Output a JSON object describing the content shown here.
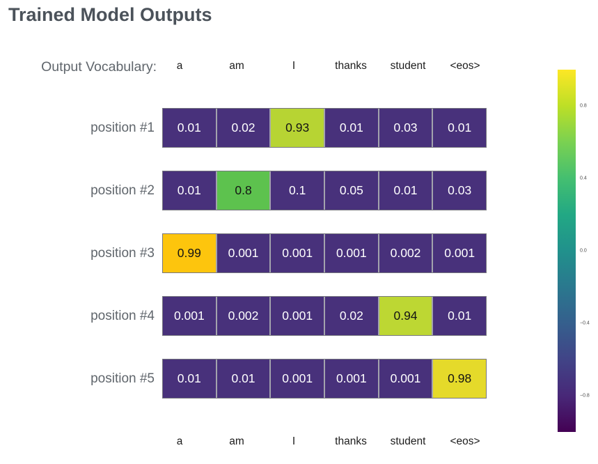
{
  "title": "Trained Model Outputs",
  "vocab_label": "Output Vocabulary:",
  "vocabulary": [
    "a",
    "am",
    "I",
    "thanks",
    "student",
    "<eos>"
  ],
  "rows": [
    {
      "label": "position #1",
      "values": [
        "0.01",
        "0.02",
        "0.93",
        "0.01",
        "0.03",
        "0.01"
      ],
      "highlight": {
        "index": 2,
        "bg": "#b7d433"
      }
    },
    {
      "label": "position #2",
      "values": [
        "0.01",
        "0.8",
        "0.1",
        "0.05",
        "0.01",
        "0.03"
      ],
      "highlight": {
        "index": 1,
        "bg": "#5dc24e"
      }
    },
    {
      "label": "position #3",
      "values": [
        "0.99",
        "0.001",
        "0.001",
        "0.001",
        "0.002",
        "0.001"
      ],
      "highlight": {
        "index": 0,
        "bg": "#fdc50d"
      }
    },
    {
      "label": "position #4",
      "values": [
        "0.001",
        "0.002",
        "0.001",
        "0.02",
        "0.94",
        "0.01"
      ],
      "highlight": {
        "index": 4,
        "bg": "#bdd733"
      }
    },
    {
      "label": "position #5",
      "values": [
        "0.01",
        "0.01",
        "0.001",
        "0.001",
        "0.001",
        "0.98"
      ],
      "highlight": {
        "index": 5,
        "bg": "#e5da2a"
      }
    }
  ],
  "colors": {
    "cell_default_bg": "#48317b",
    "cell_text_light": "#ffffff",
    "cell_text_dark": "#141414",
    "title_color": "#4b525a",
    "label_color": "#60666c",
    "colormap": "viridis"
  },
  "colorbar": {
    "ticks": [
      {
        "label": "0.8",
        "value": 0.8
      },
      {
        "label": "0.4",
        "value": 0.4
      },
      {
        "label": "0.0",
        "value": 0.0
      },
      {
        "label": "−0.4",
        "value": -0.4
      },
      {
        "label": "−0.8",
        "value": -0.8
      }
    ]
  },
  "chart_data": {
    "type": "heatmap",
    "title": "Trained Model Outputs",
    "columns": [
      "a",
      "am",
      "I",
      "thanks",
      "student",
      "<eos>"
    ],
    "rows": [
      "position #1",
      "position #2",
      "position #3",
      "position #4",
      "position #5"
    ],
    "values": [
      [
        0.01,
        0.02,
        0.93,
        0.01,
        0.03,
        0.01
      ],
      [
        0.01,
        0.8,
        0.1,
        0.05,
        0.01,
        0.03
      ],
      [
        0.99,
        0.001,
        0.001,
        0.001,
        0.002,
        0.001
      ],
      [
        0.001,
        0.002,
        0.001,
        0.02,
        0.94,
        0.01
      ],
      [
        0.01,
        0.01,
        0.001,
        0.001,
        0.001,
        0.98
      ]
    ],
    "colormap": "viridis",
    "colorbar_range": [
      -1,
      1
    ],
    "colorbar_ticks": [
      0.8,
      0.4,
      0.0,
      -0.4,
      -0.8
    ],
    "legend_position": "right",
    "grid": false
  }
}
